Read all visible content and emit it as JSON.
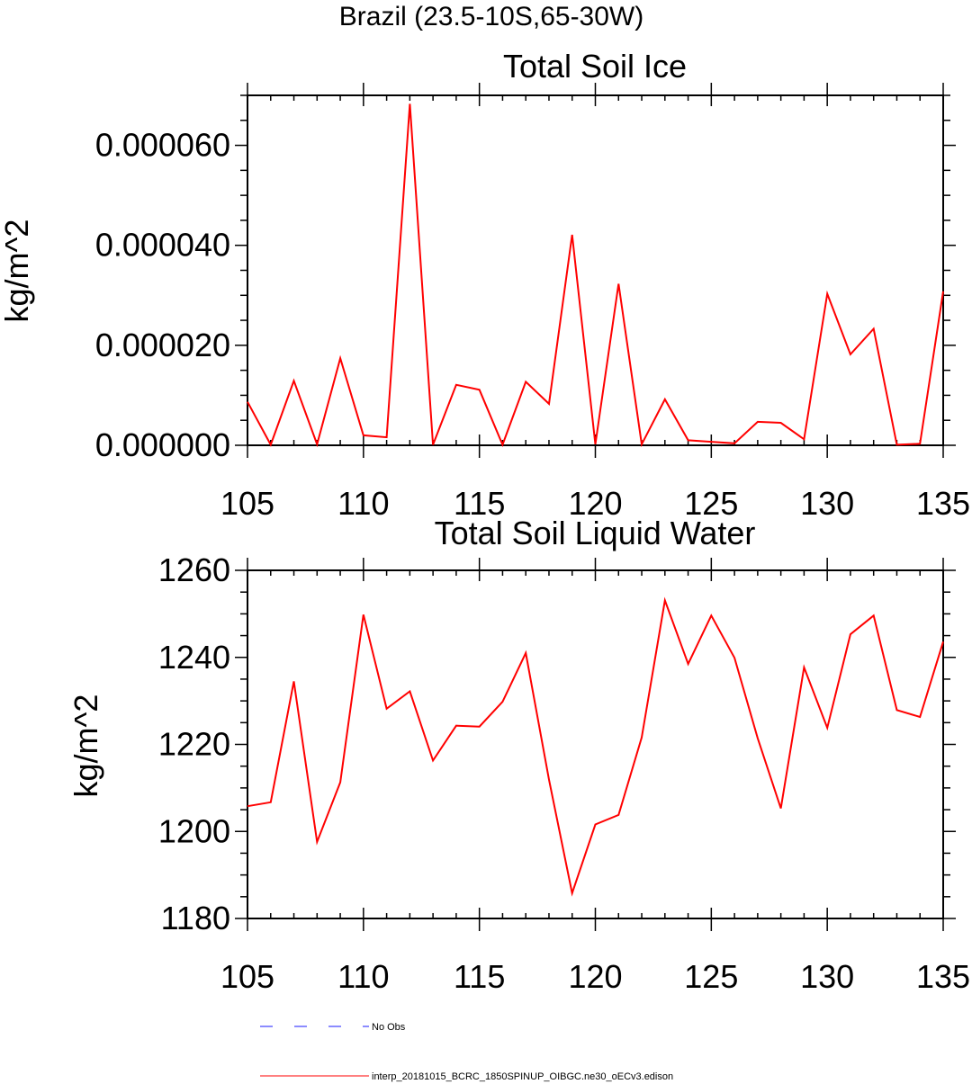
{
  "figure": {
    "suptitle": "Brazil (23.5-10S,65-30W)",
    "colors": {
      "model_line": "#ff0000",
      "obs_line": "#6666ff",
      "axes": "#000000",
      "background": "#ffffff"
    }
  },
  "legend": {
    "placement": "bottom-left",
    "obs_label": "No Obs",
    "model_label": "interp_20181015_BCRC_1850SPINUP_OIBGC.ne30_oECv3.edison"
  },
  "chart_data": [
    {
      "type": "line",
      "title": "Total Soil Ice",
      "xlabel": "",
      "ylabel": "kg/m^2",
      "xlim": [
        105,
        135
      ],
      "ylim": [
        0,
        7e-05
      ],
      "x_ticks": [
        "105",
        "110",
        "115",
        "120",
        "125",
        "130",
        "135"
      ],
      "y_ticks": [
        "0.000000",
        "0.000020",
        "0.000040",
        "0.000060"
      ],
      "y_tick_values": [
        0,
        2e-05,
        4e-05,
        6e-05
      ],
      "grid": false,
      "x": [
        105,
        106,
        107,
        108,
        109,
        110,
        111,
        112,
        113,
        114,
        115,
        116,
        117,
        118,
        119,
        120,
        121,
        122,
        123,
        124,
        125,
        126,
        127,
        128,
        129,
        130,
        131,
        132,
        133,
        134,
        135
      ],
      "series": [
        {
          "name": "interp_20181015_BCRC_1850SPINUP_OIBGC.ne30_oECv3.edison",
          "values": [
            8.7e-06,
            1e-07,
            1.29e-05,
            2e-07,
            1.74e-05,
            2e-06,
            1.6e-06,
            6.83e-05,
            1e-07,
            1.21e-05,
            1.11e-05,
            1e-07,
            1.27e-05,
            8.3e-06,
            4.21e-05,
            2e-07,
            3.23e-05,
            2e-07,
            9.2e-06,
            1e-06,
            7e-07,
            4e-07,
            4.7e-06,
            4.5e-06,
            1.2e-06,
            3.03e-05,
            1.82e-05,
            2.33e-05,
            1e-07,
            3e-07,
            3.08e-05
          ]
        }
      ]
    },
    {
      "type": "line",
      "title": "Total Soil Liquid Water",
      "xlabel": "",
      "ylabel": "kg/m^2",
      "xlim": [
        105,
        135
      ],
      "ylim": [
        1180,
        1260
      ],
      "x_ticks": [
        "105",
        "110",
        "115",
        "120",
        "125",
        "130",
        "135"
      ],
      "y_ticks": [
        "1180",
        "1200",
        "1220",
        "1240",
        "1260"
      ],
      "y_tick_values": [
        1180,
        1200,
        1220,
        1240,
        1260
      ],
      "grid": false,
      "x": [
        105,
        106,
        107,
        108,
        109,
        110,
        111,
        112,
        113,
        114,
        115,
        116,
        117,
        118,
        119,
        120,
        121,
        122,
        123,
        124,
        125,
        126,
        127,
        128,
        129,
        130,
        131,
        132,
        133,
        134,
        135
      ],
      "series": [
        {
          "name": "interp_20181015_BCRC_1850SPINUP_OIBGC.ne30_oECv3.edison",
          "values": [
            1205.8,
            1206.7,
            1234.5,
            1197.6,
            1211.3,
            1249.8,
            1228.2,
            1232.2,
            1216.3,
            1224.3,
            1224.1,
            1229.8,
            1241.0,
            1211.9,
            1185.8,
            1201.6,
            1203.8,
            1221.6,
            1253.1,
            1238.5,
            1249.6,
            1239.9,
            1221.4,
            1205.3,
            1237.7,
            1223.8,
            1245.3,
            1249.6,
            1227.9,
            1226.3,
            1243.6
          ]
        }
      ]
    }
  ]
}
